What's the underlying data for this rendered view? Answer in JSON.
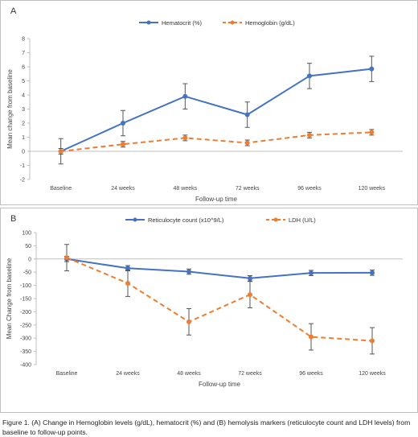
{
  "chart_data": [
    {
      "type": "line",
      "panel_label": "A",
      "categories": [
        "Baseline",
        "24 weeks",
        "48 weeks",
        "72 weeks",
        "96 weeks",
        "120 weeks"
      ],
      "xlabel": "Follow-up time",
      "ylabel": "Mean change from baseline",
      "ylim": [
        -2,
        8
      ],
      "yticks": [
        -2,
        -1,
        0,
        1,
        2,
        3,
        4,
        5,
        6,
        7,
        8
      ],
      "legend_position": "top",
      "series": [
        {
          "name": "Hematocrit (%)",
          "color": "#4472C4",
          "dash": false,
          "values": [
            0,
            2.0,
            3.9,
            2.6,
            5.35,
            5.85
          ],
          "errors": [
            0.9,
            0.9,
            0.9,
            0.9,
            0.9,
            0.9
          ]
        },
        {
          "name": "Hemoglobin (g/dL)",
          "color": "#ED7D31",
          "dash": true,
          "values": [
            0,
            0.5,
            0.95,
            0.6,
            1.15,
            1.35
          ],
          "errors": [
            0.2,
            0.2,
            0.2,
            0.2,
            0.2,
            0.2
          ]
        }
      ]
    },
    {
      "type": "line",
      "panel_label": "B",
      "categories": [
        "Baseline",
        "24 weeks",
        "48 weeks",
        "72 weeks",
        "96 weeks",
        "120 weeks"
      ],
      "xlabel": "Follow-up time",
      "ylabel": "Mean Change from baseline",
      "ylim": [
        -400,
        100
      ],
      "yticks": [
        -400,
        -350,
        -300,
        -250,
        -200,
        -150,
        -100,
        -50,
        0,
        50,
        100
      ],
      "legend_position": "top",
      "series": [
        {
          "name": "Reticulocyte count (x10^9/L)",
          "color": "#4472C4",
          "dash": false,
          "values": [
            0,
            -35,
            -48,
            -73,
            -53,
            -52
          ],
          "errors": [
            10,
            10,
            10,
            10,
            10,
            10
          ]
        },
        {
          "name": "LDH (U/L)",
          "color": "#ED7D31",
          "dash": true,
          "values": [
            5,
            -92,
            -238,
            -135,
            -295,
            -310
          ],
          "errors": [
            50,
            50,
            50,
            50,
            50,
            50
          ]
        }
      ]
    }
  ],
  "caption": "Figure 1. (A) Change in Hemoglobin levels (g/dL), hematocrit (%) and (B) hemolysis markers (reticulocyte count and LDH levels) from baseline to follow-up points."
}
